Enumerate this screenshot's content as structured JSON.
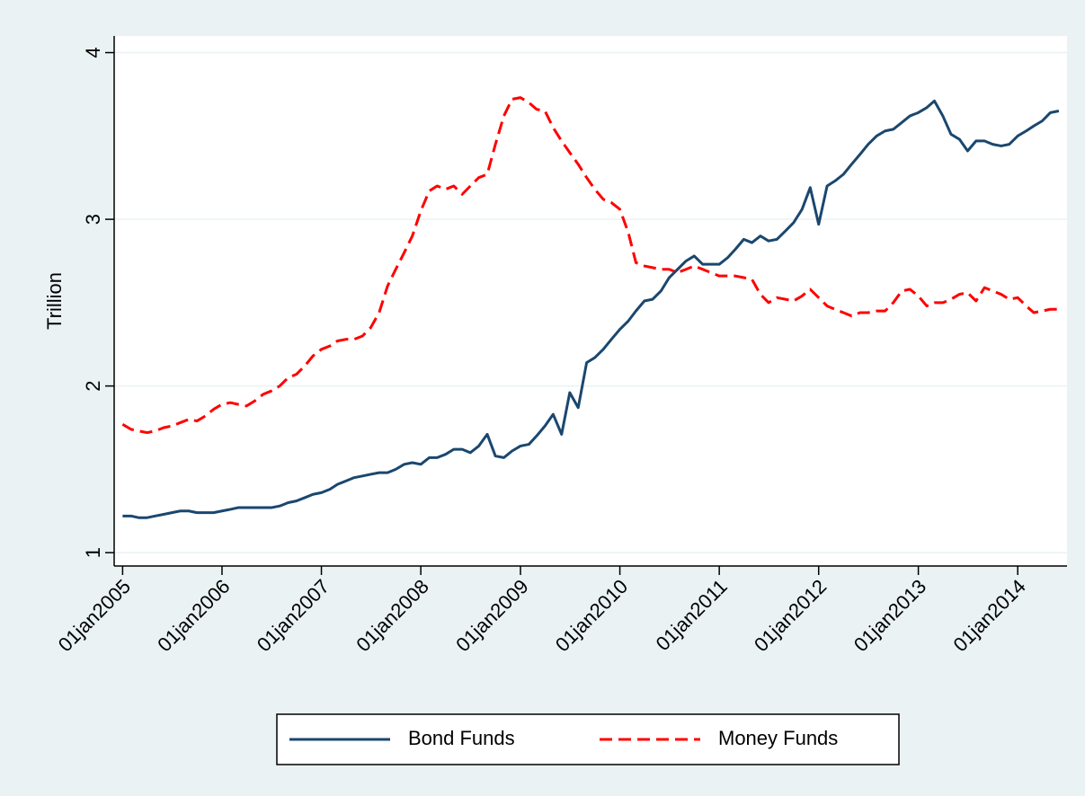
{
  "chart_data": {
    "type": "line",
    "y_label": "Trillion",
    "x": [
      "2005-01-01",
      "2005-02-01",
      "2005-03-01",
      "2005-04-01",
      "2005-05-01",
      "2005-06-01",
      "2005-07-01",
      "2005-08-01",
      "2005-09-01",
      "2005-10-01",
      "2005-11-01",
      "2005-12-01",
      "2006-01-01",
      "2006-02-01",
      "2006-03-01",
      "2006-04-01",
      "2006-05-01",
      "2006-06-01",
      "2006-07-01",
      "2006-08-01",
      "2006-09-01",
      "2006-10-01",
      "2006-11-01",
      "2006-12-01",
      "2007-01-01",
      "2007-02-01",
      "2007-03-01",
      "2007-04-01",
      "2007-05-01",
      "2007-06-01",
      "2007-07-01",
      "2007-08-01",
      "2007-09-01",
      "2007-10-01",
      "2007-11-01",
      "2007-12-01",
      "2008-01-01",
      "2008-02-01",
      "2008-03-01",
      "2008-04-01",
      "2008-05-01",
      "2008-06-01",
      "2008-07-01",
      "2008-08-01",
      "2008-09-01",
      "2008-10-01",
      "2008-11-01",
      "2008-12-01",
      "2009-01-01",
      "2009-02-01",
      "2009-03-01",
      "2009-04-01",
      "2009-05-01",
      "2009-06-01",
      "2009-07-01",
      "2009-08-01",
      "2009-09-01",
      "2009-10-01",
      "2009-11-01",
      "2009-12-01",
      "2010-01-01",
      "2010-02-01",
      "2010-03-01",
      "2010-04-01",
      "2010-05-01",
      "2010-06-01",
      "2010-07-01",
      "2010-08-01",
      "2010-09-01",
      "2010-10-01",
      "2010-11-01",
      "2010-12-01",
      "2011-01-01",
      "2011-02-01",
      "2011-03-01",
      "2011-04-01",
      "2011-05-01",
      "2011-06-01",
      "2011-07-01",
      "2011-08-01",
      "2011-09-01",
      "2011-10-01",
      "2011-11-01",
      "2011-12-01",
      "2012-01-01",
      "2012-02-01",
      "2012-03-01",
      "2012-04-01",
      "2012-05-01",
      "2012-06-01",
      "2012-07-01",
      "2012-08-01",
      "2012-09-01",
      "2012-10-01",
      "2012-11-01",
      "2012-12-01",
      "2013-01-01",
      "2013-02-01",
      "2013-03-01",
      "2013-04-01",
      "2013-05-01",
      "2013-06-01",
      "2013-07-01",
      "2013-08-01",
      "2013-09-01",
      "2013-10-01",
      "2013-11-01",
      "2013-12-01",
      "2014-01-01",
      "2014-02-01",
      "2014-03-01",
      "2014-04-01",
      "2014-05-01",
      "2014-06-01"
    ],
    "series": [
      {
        "name": "Bond Funds",
        "color": "#1a476f",
        "dash": "solid",
        "values": [
          1.22,
          1.22,
          1.21,
          1.21,
          1.22,
          1.23,
          1.24,
          1.25,
          1.25,
          1.24,
          1.24,
          1.24,
          1.25,
          1.26,
          1.27,
          1.27,
          1.27,
          1.27,
          1.27,
          1.28,
          1.3,
          1.31,
          1.33,
          1.35,
          1.36,
          1.38,
          1.41,
          1.43,
          1.45,
          1.46,
          1.47,
          1.48,
          1.48,
          1.5,
          1.53,
          1.54,
          1.53,
          1.57,
          1.57,
          1.59,
          1.62,
          1.62,
          1.6,
          1.64,
          1.71,
          1.58,
          1.57,
          1.61,
          1.64,
          1.65,
          1.7,
          1.76,
          1.83,
          1.71,
          1.96,
          1.87,
          2.14,
          2.17,
          2.22,
          2.28,
          2.34,
          2.39,
          2.45,
          2.51,
          2.52,
          2.57,
          2.65,
          2.7,
          2.75,
          2.78,
          2.73,
          2.73,
          2.73,
          2.77,
          2.82,
          2.88,
          2.86,
          2.9,
          2.87,
          2.88,
          2.93,
          2.98,
          3.06,
          3.19,
          2.97,
          3.2,
          3.23,
          3.27,
          3.33,
          3.39,
          3.45,
          3.5,
          3.53,
          3.54,
          3.58,
          3.62,
          3.64,
          3.67,
          3.71,
          3.62,
          3.51,
          3.48,
          3.41,
          3.47,
          3.47,
          3.45,
          3.44,
          3.45,
          3.5,
          3.53,
          3.56,
          3.59,
          3.64,
          3.65
        ]
      },
      {
        "name": "Money Funds",
        "color": "#ff0000",
        "dash": "dashed",
        "values": [
          1.77,
          1.74,
          1.73,
          1.72,
          1.73,
          1.75,
          1.76,
          1.78,
          1.8,
          1.79,
          1.82,
          1.86,
          1.89,
          1.9,
          1.89,
          1.88,
          1.91,
          1.95,
          1.97,
          2.0,
          2.05,
          2.07,
          2.12,
          2.18,
          2.22,
          2.24,
          2.27,
          2.28,
          2.28,
          2.3,
          2.35,
          2.44,
          2.6,
          2.7,
          2.8,
          2.9,
          3.05,
          3.17,
          3.2,
          3.18,
          3.2,
          3.15,
          3.2,
          3.25,
          3.27,
          3.45,
          3.62,
          3.72,
          3.73,
          3.7,
          3.66,
          3.65,
          3.55,
          3.47,
          3.4,
          3.33,
          3.25,
          3.18,
          3.12,
          3.1,
          3.06,
          2.92,
          2.74,
          2.72,
          2.71,
          2.7,
          2.7,
          2.68,
          2.7,
          2.72,
          2.7,
          2.68,
          2.66,
          2.66,
          2.66,
          2.65,
          2.64,
          2.55,
          2.5,
          2.53,
          2.52,
          2.51,
          2.54,
          2.58,
          2.53,
          2.48,
          2.46,
          2.44,
          2.42,
          2.44,
          2.44,
          2.45,
          2.45,
          2.5,
          2.57,
          2.58,
          2.54,
          2.48,
          2.5,
          2.5,
          2.52,
          2.55,
          2.56,
          2.51,
          2.59,
          2.57,
          2.55,
          2.52,
          2.53,
          2.48,
          2.44,
          2.45,
          2.46,
          2.46
        ]
      }
    ],
    "xlim": [
      "2004-12-01",
      "2014-07-01"
    ],
    "xticks": [
      {
        "value": "2005-01-01",
        "label": "01jan2005"
      },
      {
        "value": "2006-01-01",
        "label": "01jan2006"
      },
      {
        "value": "2007-01-01",
        "label": "01jan2007"
      },
      {
        "value": "2008-01-01",
        "label": "01jan2008"
      },
      {
        "value": "2009-01-01",
        "label": "01jan2009"
      },
      {
        "value": "2010-01-01",
        "label": "01jan2010"
      },
      {
        "value": "2011-01-01",
        "label": "01jan2011"
      },
      {
        "value": "2012-01-01",
        "label": "01jan2012"
      },
      {
        "value": "2013-01-01",
        "label": "01jan2013"
      },
      {
        "value": "2014-01-01",
        "label": "01jan2014"
      }
    ],
    "ylim": [
      0.92,
      4.1
    ],
    "yticks": [
      1,
      2,
      3,
      4
    ],
    "grid": true,
    "legend": "bottom"
  }
}
